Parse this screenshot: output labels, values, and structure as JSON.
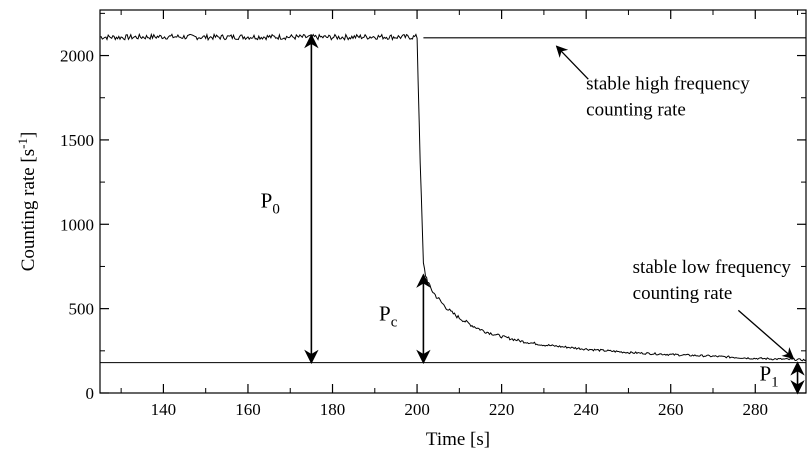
{
  "chart_data": {
    "type": "line",
    "xlabel": "Time [s]",
    "ylabel_main": "Counting rate [s",
    "ylabel_sup": "-1",
    "ylabel_tail": "]",
    "xlim": [
      125,
      292
    ],
    "ylim": [
      0,
      2270
    ],
    "xticks": [
      140,
      160,
      180,
      200,
      220,
      240,
      260,
      280
    ],
    "yticks": [
      0,
      500,
      1000,
      1500,
      2000
    ],
    "grid": false,
    "series": [
      {
        "x": [
          125,
          130,
          140,
          150,
          160,
          170,
          180,
          190,
          195,
          200,
          200.5,
          201,
          201.5,
          202,
          203,
          204,
          206,
          208,
          210,
          213,
          216,
          220,
          225,
          230,
          240,
          250,
          260,
          270,
          280,
          290,
          292
        ],
        "y": [
          2110,
          2108,
          2112,
          2109,
          2111,
          2110,
          2108,
          2112,
          2110,
          2110,
          1620,
          1150,
          760,
          700,
          630,
          590,
          530,
          480,
          445,
          400,
          365,
          335,
          305,
          285,
          260,
          240,
          228,
          218,
          205,
          198,
          195
        ]
      }
    ],
    "reference_lines": [
      {
        "y": 2105,
        "x_from": 201.5,
        "x_to": 292
      },
      {
        "y": 180,
        "x_from": 125,
        "x_to": 292
      }
    ],
    "arrows": [
      {
        "label_main": "P",
        "label_sub": "0",
        "x": 175,
        "y_from": 180,
        "y_to": 2120,
        "label_x": 163,
        "label_y": 1100
      },
      {
        "label_main": "P",
        "label_sub": "c",
        "x": 201.5,
        "y_from": 180,
        "y_to": 700,
        "label_x": 191,
        "label_y": 430
      },
      {
        "label_main": "P",
        "label_sub": "1",
        "x": 290,
        "y_from": 0,
        "y_to": 180,
        "label_x": 281,
        "label_y": 75
      }
    ],
    "annotations": [
      {
        "lines": [
          "stable high frequency",
          "counting rate"
        ],
        "x": 240,
        "y": 1800
      },
      {
        "lines": [
          "stable low frequency",
          "counting rate"
        ],
        "x": 251,
        "y": 710
      }
    ]
  }
}
